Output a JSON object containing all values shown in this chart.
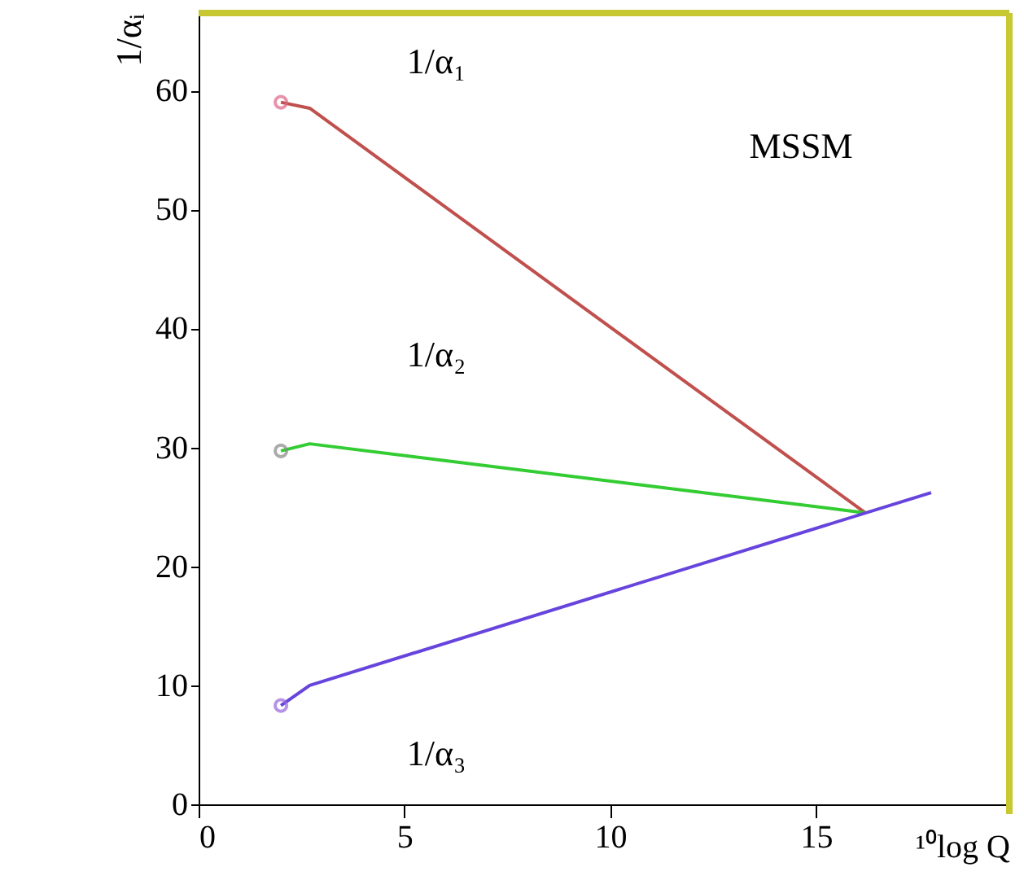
{
  "chart_data": {
    "type": "line",
    "xlabel": "¹⁰log Q",
    "ylabel": "1/αᵢ",
    "xlim": [
      0,
      19.7
    ],
    "ylim": [
      0,
      66.5
    ],
    "xticks": [
      0,
      5,
      10,
      15
    ],
    "yticks": [
      0,
      10,
      20,
      30,
      40,
      50,
      60
    ],
    "grid": false,
    "marker": "none",
    "line_style": "solid",
    "series": [
      {
        "color": "#c0504d",
        "x": [
          2,
          2.7,
          16.2
        ],
        "values": [
          59,
          58.5,
          24.5
        ]
      },
      {
        "color": "#33cc33",
        "x": [
          2,
          2.7,
          16.2
        ],
        "values": [
          29.7,
          30.3,
          24.5
        ]
      },
      {
        "color": "#6644dd",
        "x": [
          2,
          2.7,
          17.8
        ],
        "values": [
          8.3,
          10,
          26.2
        ]
      },
      {
        "type": "scatter",
        "marker": "circle",
        "x": [
          2,
          2,
          2
        ],
        "values": [
          59,
          29.7,
          8.3
        ],
        "colors": [
          "#dd6688",
          "#888888",
          "#9966dd"
        ]
      }
    ],
    "annotations": [
      "1/α₁",
      "1/α₂",
      "1/α₃",
      "MSSM"
    ]
  }
}
